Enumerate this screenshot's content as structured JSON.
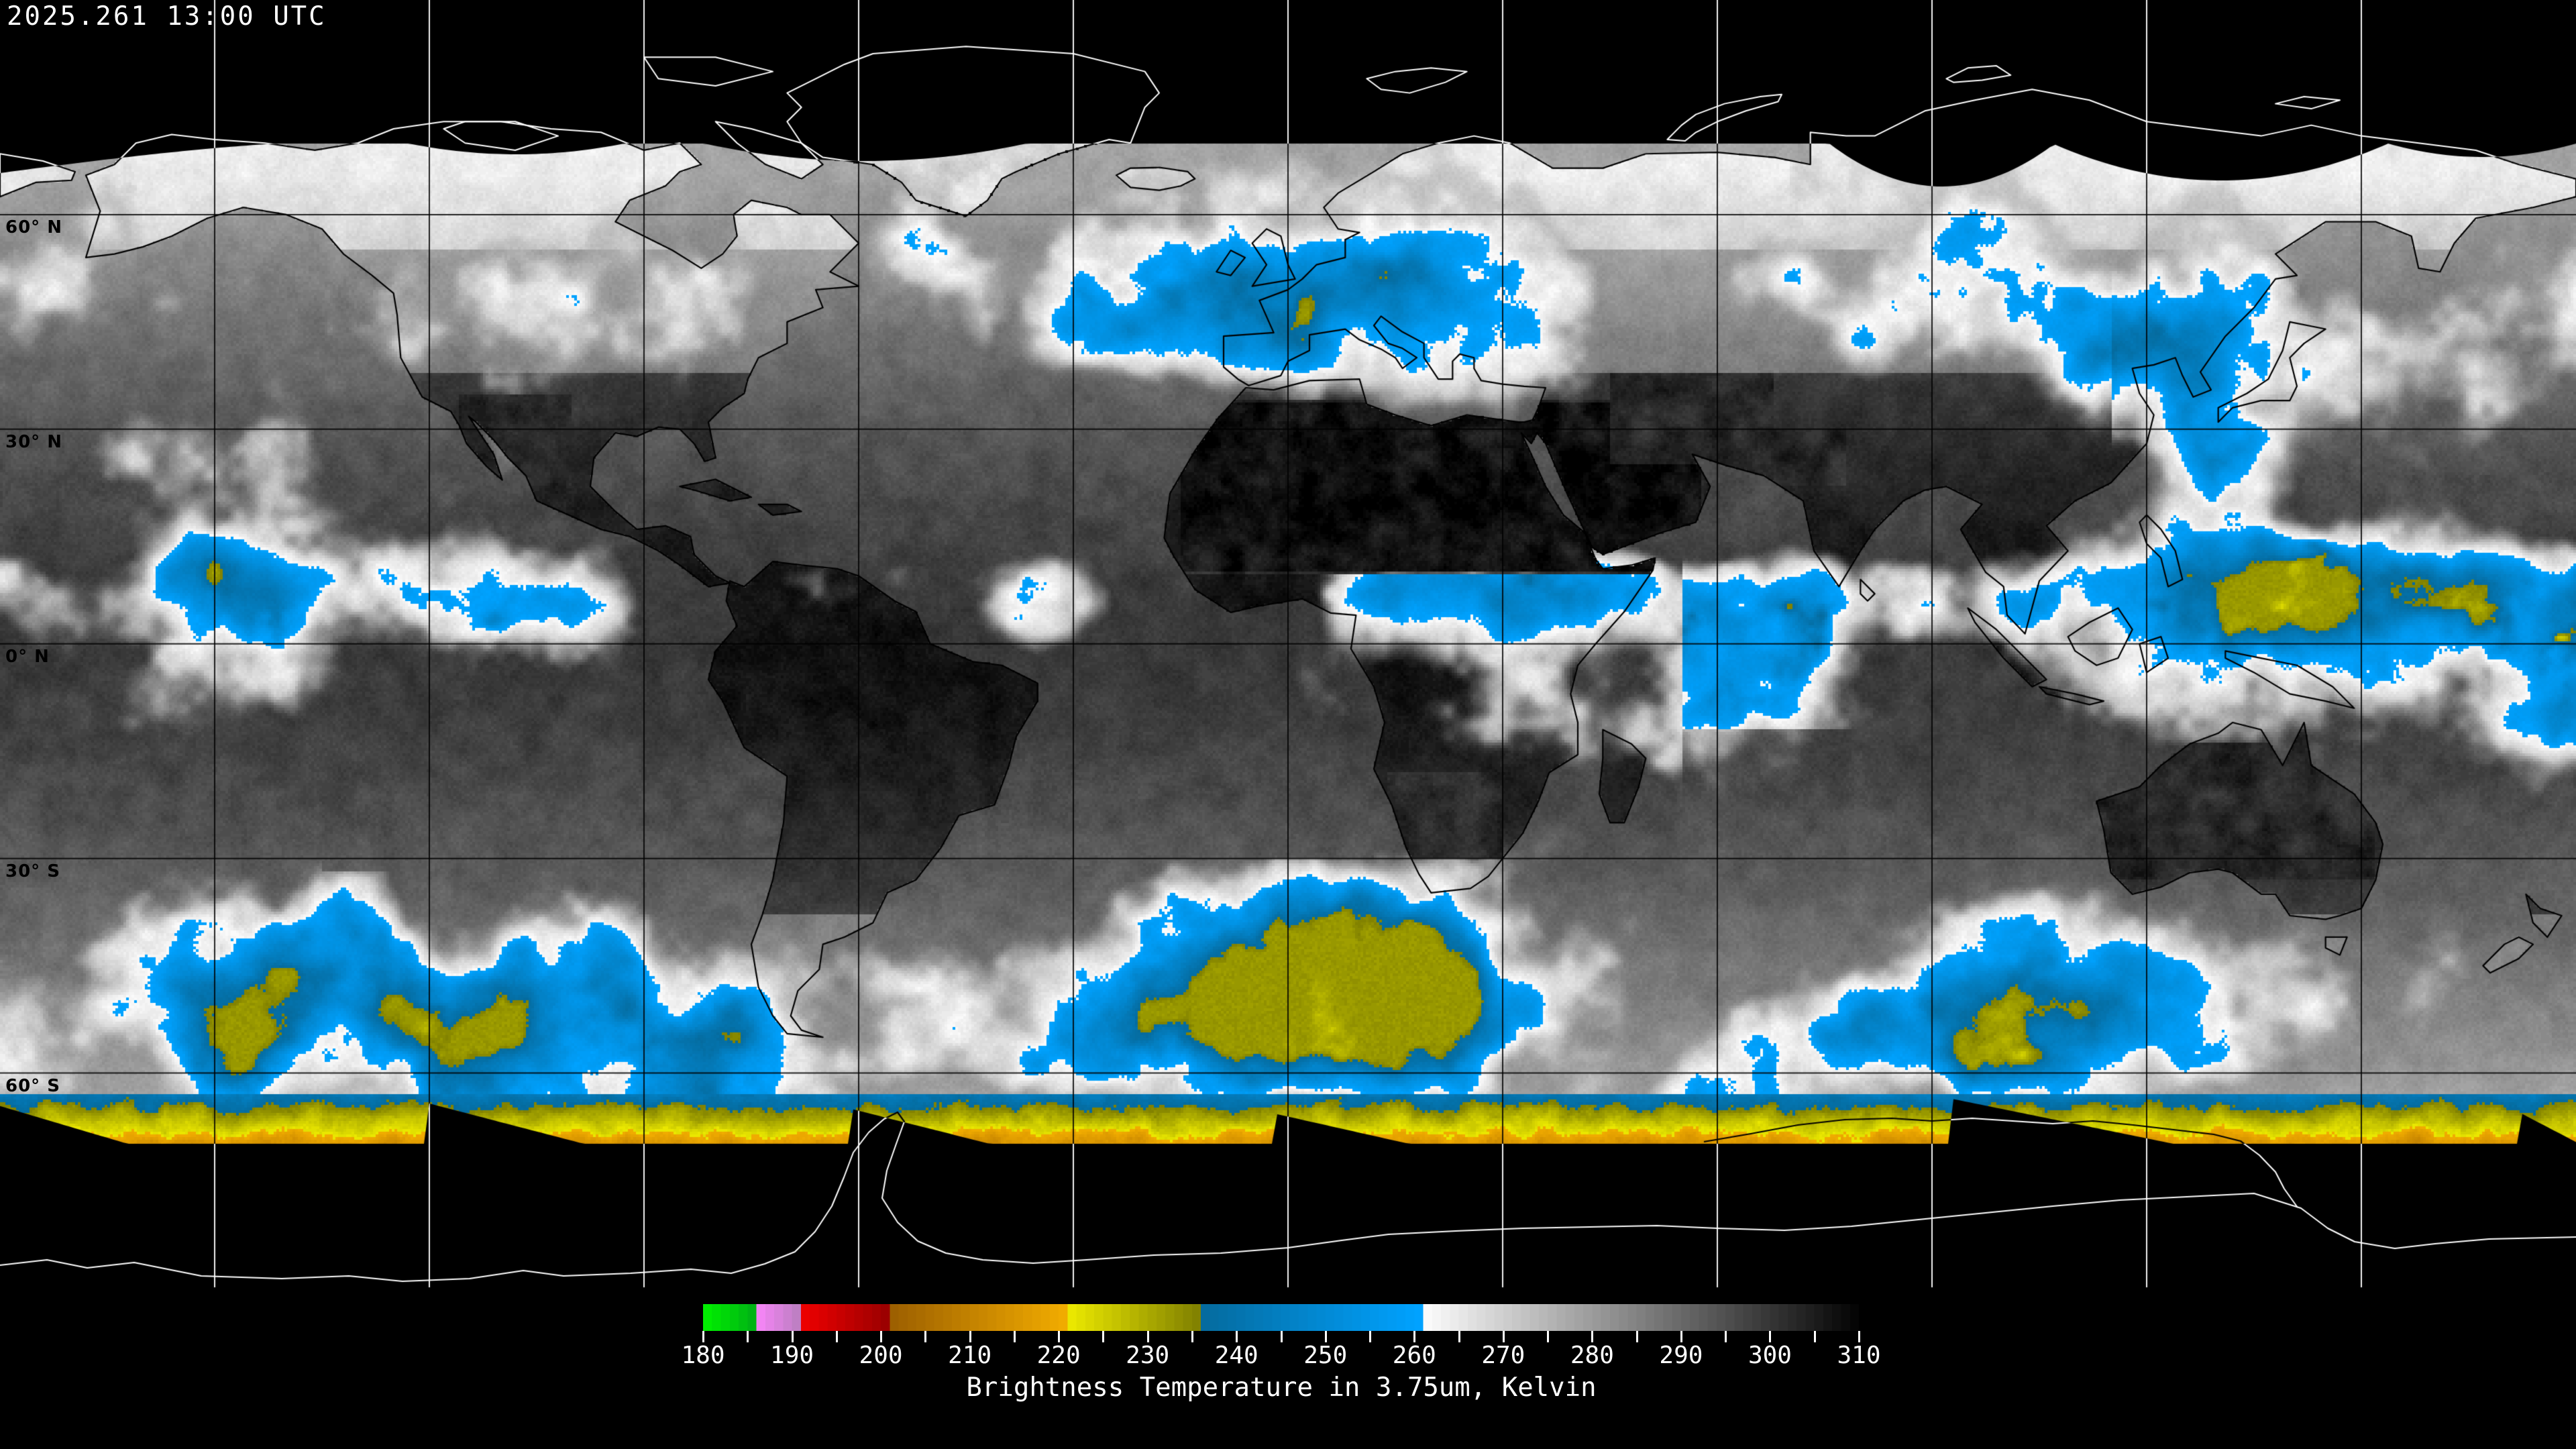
{
  "header": {
    "timestamp": "2025.261 13:00 UTC"
  },
  "map": {
    "projection": "equirectangular",
    "background_color": "#000000",
    "grid": {
      "lon_step_deg": 30,
      "lat_step_deg": 30
    },
    "latitude_labels": [
      {
        "text": "60° N",
        "lat_deg": 60
      },
      {
        "text": "30° N",
        "lat_deg": 30
      },
      {
        "text": "0° N",
        "lat_deg": 0
      },
      {
        "text": "30° S",
        "lat_deg": -30
      },
      {
        "text": "60° S",
        "lat_deg": -60
      }
    ]
  },
  "colorbar": {
    "caption": "Brightness Temperature in 3.75um, Kelvin",
    "range_k": {
      "min": 180,
      "max": 310
    },
    "major_ticks": [
      180,
      190,
      200,
      210,
      220,
      230,
      240,
      250,
      260,
      270,
      280,
      290,
      300,
      310
    ],
    "minor_tick_step_k": 5,
    "palette_segments": [
      {
        "from_k": 180,
        "to_k": 185,
        "from_color": "#00ee00",
        "to_color": "#00b414"
      },
      {
        "from_k": 185,
        "to_k": 190,
        "from_color": "#ff86ff",
        "to_color": "#bf7fc4"
      },
      {
        "from_k": 190,
        "to_k": 200,
        "from_color": "#f40000",
        "to_color": "#9c0000"
      },
      {
        "from_k": 200,
        "to_k": 220,
        "from_color": "#995c00",
        "to_color": "#f0ab00"
      },
      {
        "from_k": 220,
        "to_k": 235,
        "from_color": "#f1ee00",
        "to_color": "#828200"
      },
      {
        "from_k": 235,
        "to_k": 260,
        "from_color": "#05699b",
        "to_color": "#00a2ff"
      },
      {
        "from_k": 260,
        "to_k": 310,
        "from_color": "#ffffff",
        "to_color": "#000000"
      }
    ]
  }
}
